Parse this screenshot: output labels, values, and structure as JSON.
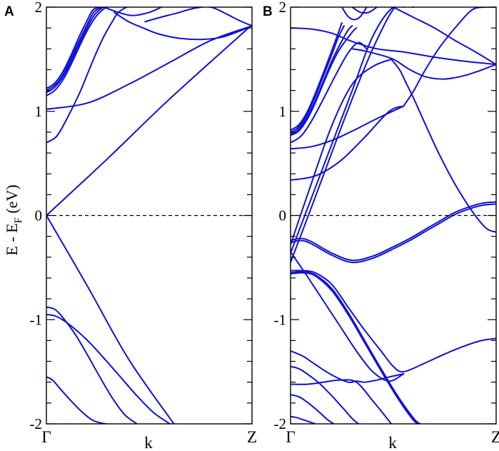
{
  "chart_data": [
    {
      "type": "line",
      "panel_label": "A",
      "ylabel_main": "E - E",
      "ylabel_sub": "F",
      "ylabel_unit": " (eV)",
      "xlabel": "k",
      "ylim": [
        -2,
        2
      ],
      "yticks": [
        "-2",
        "-1",
        "0",
        "1",
        "2"
      ],
      "xtick_labels": {
        "left": "Γ",
        "right": "Z"
      },
      "fermi_level": 0,
      "band_color": "#1010d8",
      "bands": [
        {
          "x": [
            0,
            0.3,
            0.6,
            1.0
          ],
          "y": [
            0.0,
            0.55,
            1.12,
            1.83
          ]
        },
        {
          "x": [
            0,
            0.2,
            0.4,
            0.6,
            0.8,
            1.0
          ],
          "y": [
            1.02,
            1.08,
            1.26,
            1.47,
            1.68,
            1.82
          ]
        },
        {
          "x": [
            0,
            0.05,
            0.1,
            0.16,
            0.2,
            0.24,
            0.28,
            0.32,
            0.35,
            0.39
          ],
          "y": [
            0.7,
            0.76,
            0.93,
            1.17,
            1.36,
            1.55,
            1.72,
            1.86,
            1.95,
            2.0
          ]
        },
        {
          "x": [
            0,
            0.04,
            0.08,
            0.12,
            0.16,
            0.2,
            0.245,
            0.29
          ],
          "y": [
            1.15,
            1.2,
            1.3,
            1.45,
            1.62,
            1.78,
            1.92,
            2.0
          ]
        },
        {
          "x": [
            0,
            0.04,
            0.08,
            0.12,
            0.16,
            0.2,
            0.235,
            0.275
          ],
          "y": [
            1.18,
            1.23,
            1.33,
            1.48,
            1.65,
            1.81,
            1.93,
            2.0
          ]
        },
        {
          "x": [
            0,
            0.04,
            0.08,
            0.12,
            0.16,
            0.2,
            0.23,
            0.265
          ],
          "y": [
            1.2,
            1.25,
            1.35,
            1.51,
            1.68,
            1.84,
            1.95,
            2.0
          ]
        },
        {
          "x": [
            0,
            0.04,
            0.08,
            0.12,
            0.16,
            0.2,
            0.225,
            0.255
          ],
          "y": [
            1.22,
            1.27,
            1.38,
            1.54,
            1.72,
            1.88,
            1.97,
            2.0
          ]
        },
        {
          "x": [
            0.33,
            0.4,
            0.47,
            0.55,
            0.65,
            0.75,
            0.85,
            0.94,
            1.0
          ],
          "y": [
            1.95,
            1.86,
            1.8,
            1.74,
            1.7,
            1.69,
            1.71,
            1.77,
            1.82
          ]
        },
        {
          "x": [
            0.48,
            0.55,
            0.63,
            0.72,
            0.8,
            0.88,
            0.94,
            1.0
          ],
          "y": [
            1.86,
            1.9,
            1.94,
            1.99,
            2.0,
            1.93,
            1.87,
            1.82
          ]
        },
        {
          "x": [
            0.28,
            0.35,
            0.42,
            0.5,
            0.56
          ],
          "y": [
            2.0,
            1.95,
            1.92,
            1.95,
            2.0
          ]
        },
        {
          "x": [
            0,
            0.2,
            0.4,
            0.62
          ],
          "y": [
            0.0,
            -0.68,
            -1.38,
            -2.0
          ]
        },
        {
          "x": [
            0,
            0.05,
            0.12,
            0.2,
            0.28,
            0.36,
            0.44,
            0.52,
            0.6
          ],
          "y": [
            -0.95,
            -0.97,
            -1.06,
            -1.2,
            -1.37,
            -1.55,
            -1.73,
            -1.89,
            -2.0
          ]
        },
        {
          "x": [
            0,
            0.04,
            0.08,
            0.14,
            0.2,
            0.26,
            0.32,
            0.38,
            0.44
          ],
          "y": [
            -0.88,
            -0.9,
            -0.98,
            -1.14,
            -1.34,
            -1.55,
            -1.75,
            -1.91,
            -2.0
          ]
        },
        {
          "x": [
            0,
            0.03,
            0.07,
            0.12,
            0.17,
            0.22,
            0.26,
            0.29
          ],
          "y": [
            -1.55,
            -1.58,
            -1.67,
            -1.78,
            -1.88,
            -1.96,
            -1.99,
            -2.0
          ]
        }
      ]
    },
    {
      "type": "line",
      "panel_label": "B",
      "xlabel": "k",
      "ylim": [
        -2,
        2
      ],
      "yticks": [
        "-2",
        "-1",
        "0",
        "1",
        "2"
      ],
      "xtick_labels": {
        "left": "Γ",
        "right": "Z"
      },
      "fermi_level": 0,
      "band_color": "#1010d8",
      "bands": [
        {
          "x": [
            0,
            0.05,
            0.1,
            0.2,
            0.3,
            0.4,
            0.5,
            0.58,
            0.65,
            0.72,
            0.8,
            0.88,
            0.94,
            1.0
          ],
          "y": [
            -0.24,
            -0.22,
            -0.25,
            -0.36,
            -0.43,
            -0.39,
            -0.3,
            -0.22,
            -0.14,
            -0.06,
            0.03,
            0.09,
            0.12,
            0.13
          ]
        },
        {
          "x": [
            0,
            0.05,
            0.1,
            0.2,
            0.3,
            0.4,
            0.5,
            0.58,
            0.65,
            0.72,
            0.8,
            0.88,
            0.94,
            1.0
          ],
          "y": [
            -0.26,
            -0.24,
            -0.27,
            -0.38,
            -0.45,
            -0.41,
            -0.32,
            -0.24,
            -0.16,
            -0.08,
            0.01,
            0.07,
            0.1,
            0.11
          ]
        },
        {
          "x": [
            0,
            0.1,
            0.2,
            0.3,
            0.4,
            0.49
          ],
          "y": [
            -0.28,
            0.3,
            0.86,
            1.26,
            1.43,
            1.5
          ]
        },
        {
          "x": [
            0,
            0.1,
            0.2,
            0.3,
            0.4,
            0.5,
            0.6
          ],
          "y": [
            -0.36,
            0.16,
            0.68,
            1.2,
            1.72,
            2.0,
            2.0
          ]
        },
        {
          "x": [
            0,
            0.1,
            0.2,
            0.3,
            0.4,
            0.5,
            0.55
          ],
          "y": [
            -0.45,
            0.07,
            0.6,
            1.12,
            1.6,
            1.98,
            2.0
          ]
        },
        {
          "x": [
            0.49,
            0.53,
            0.56,
            0.6,
            0.65,
            0.72,
            0.8,
            0.88,
            0.95,
            1.0
          ],
          "y": [
            1.5,
            1.4,
            1.28,
            1.12,
            0.9,
            0.6,
            0.3,
            0.05,
            -0.12,
            -0.16
          ]
        },
        {
          "x": [
            0,
            0.12,
            0.24,
            0.36,
            0.48,
            0.55
          ],
          "y": [
            0.34,
            0.38,
            0.52,
            0.75,
            1.0,
            1.05
          ]
        },
        {
          "x": [
            0,
            0.1,
            0.2,
            0.3,
            0.42,
            0.55
          ],
          "y": [
            0.64,
            0.66,
            0.72,
            0.81,
            0.93,
            1.05
          ]
        },
        {
          "x": [
            0.55,
            0.6,
            0.65,
            0.72,
            0.8,
            0.88,
            0.94,
            1.0
          ],
          "y": [
            1.05,
            1.2,
            1.38,
            1.6,
            1.8,
            1.97,
            2.0,
            2.0
          ]
        },
        {
          "x": [
            0,
            0.05,
            0.1,
            0.16,
            0.22,
            0.28,
            0.33,
            0.37
          ],
          "y": [
            0.7,
            0.76,
            0.9,
            1.12,
            1.35,
            1.56,
            1.66,
            1.6
          ]
        },
        {
          "x": [
            0,
            0.04,
            0.08,
            0.12,
            0.16,
            0.2,
            0.24,
            0.3,
            0.32
          ],
          "y": [
            0.77,
            0.81,
            0.92,
            1.08,
            1.27,
            1.45,
            1.6,
            1.76,
            1.8
          ]
        },
        {
          "x": [
            0,
            0.04,
            0.08,
            0.12,
            0.16,
            0.2,
            0.24,
            0.28,
            0.3
          ],
          "y": [
            0.78,
            0.83,
            0.94,
            1.1,
            1.29,
            1.48,
            1.64,
            1.78,
            1.82
          ]
        },
        {
          "x": [
            0,
            0.04,
            0.08,
            0.12,
            0.16,
            0.2,
            0.23,
            0.26
          ],
          "y": [
            0.8,
            0.85,
            0.97,
            1.14,
            1.34,
            1.54,
            1.7,
            1.82
          ]
        },
        {
          "x": [
            0,
            0.04,
            0.08,
            0.12,
            0.16,
            0.2,
            0.23,
            0.25
          ],
          "y": [
            0.82,
            0.87,
            0.99,
            1.17,
            1.37,
            1.58,
            1.74,
            1.85
          ]
        },
        {
          "x": [
            0,
            0.1,
            0.2,
            0.3,
            0.42,
            0.55,
            0.7,
            0.85,
            1.0
          ],
          "y": [
            1.8,
            1.79,
            1.75,
            1.67,
            1.6,
            1.57,
            1.52,
            1.48,
            1.45
          ]
        },
        {
          "x": [
            0.3,
            0.36,
            0.42,
            0.5,
            0.58,
            0.66,
            0.75,
            0.84,
            0.92,
            1.0
          ],
          "y": [
            1.6,
            1.58,
            1.55,
            1.5,
            1.4,
            1.33,
            1.31,
            1.34,
            1.39,
            1.45
          ]
        },
        {
          "x": [
            0.5,
            0.6,
            0.7,
            0.8,
            0.9,
            1.0
          ],
          "y": [
            2.0,
            1.9,
            1.8,
            1.68,
            1.57,
            1.45
          ]
        },
        {
          "x": [
            0.25,
            0.28,
            0.31,
            0.34,
            0.37
          ],
          "y": [
            2.0,
            1.91,
            1.88,
            1.91,
            2.0
          ]
        },
        {
          "x": [
            0.3,
            0.34,
            0.38,
            0.42
          ],
          "y": [
            2.0,
            1.95,
            1.95,
            2.0
          ]
        },
        {
          "x": [
            0,
            0.06,
            0.12,
            0.2,
            0.28,
            0.36,
            0.44,
            0.5,
            0.55,
            0.65,
            0.75,
            0.85,
            0.93,
            1.0
          ],
          "y": [
            -0.53,
            -0.53,
            -0.55,
            -0.66,
            -0.88,
            -1.1,
            -1.3,
            -1.45,
            -1.5,
            -1.42,
            -1.33,
            -1.25,
            -1.2,
            -1.18
          ]
        },
        {
          "x": [
            0,
            0.06,
            0.12,
            0.2,
            0.28,
            0.36,
            0.44,
            0.52,
            0.6,
            0.63
          ],
          "y": [
            -0.55,
            -0.54,
            -0.57,
            -0.7,
            -0.93,
            -1.2,
            -1.47,
            -1.73,
            -1.95,
            -2.0
          ]
        },
        {
          "x": [
            0,
            0.06,
            0.12,
            0.2,
            0.28,
            0.36,
            0.44,
            0.52,
            0.6,
            0.63
          ],
          "y": [
            -0.56,
            -0.55,
            -0.58,
            -0.72,
            -0.95,
            -1.22,
            -1.49,
            -1.75,
            -1.97,
            -2.0
          ]
        },
        {
          "x": [
            0,
            0.08,
            0.16,
            0.24,
            0.32,
            0.4,
            0.48,
            0.55
          ],
          "y": [
            -0.35,
            -0.58,
            -0.82,
            -1.06,
            -1.3,
            -1.5,
            -1.59,
            -1.52
          ]
        },
        {
          "x": [
            0,
            0.06,
            0.12,
            0.2,
            0.28,
            0.32,
            0.36,
            0.42,
            0.48,
            0.55
          ],
          "y": [
            -1.3,
            -1.35,
            -1.43,
            -1.53,
            -1.6,
            -1.59,
            -1.6,
            -1.58,
            -1.55,
            -1.52
          ]
        },
        {
          "x": [
            0,
            0.08,
            0.16,
            0.24,
            0.32,
            0.4,
            0.45,
            0.49
          ],
          "y": [
            -1.62,
            -1.62,
            -1.6,
            -1.58,
            -1.6,
            -1.78,
            -1.9,
            -2.0
          ]
        },
        {
          "x": [
            0,
            0.04,
            0.08,
            0.14,
            0.2,
            0.26,
            0.3,
            0.33
          ],
          "y": [
            -1.45,
            -1.47,
            -1.52,
            -1.61,
            -1.73,
            -1.86,
            -1.95,
            -2.0
          ]
        },
        {
          "x": [
            0,
            0.04,
            0.08,
            0.13,
            0.18,
            0.21
          ],
          "y": [
            -1.72,
            -1.74,
            -1.79,
            -1.87,
            -1.96,
            -2.0
          ]
        },
        {
          "x": [
            0,
            0.03,
            0.06,
            0.09,
            0.12
          ],
          "y": [
            -1.93,
            -1.94,
            -1.96,
            -1.98,
            -2.0
          ]
        }
      ]
    }
  ]
}
